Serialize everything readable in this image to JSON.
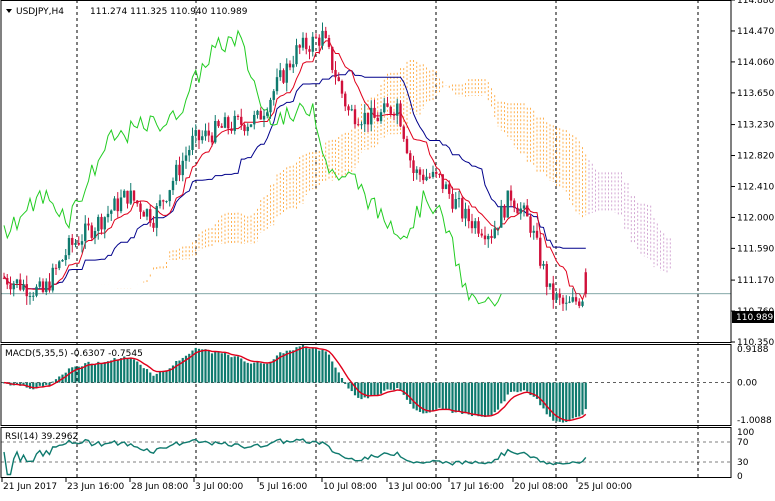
{
  "header": {
    "symbol": "USDJPY,H4",
    "ohlc": "111.274 111.325 110.940 110.989"
  },
  "price_axis": {
    "ticks": [
      "114.880",
      "114.470",
      "114.060",
      "113.650",
      "113.230",
      "112.820",
      "112.410",
      "112.000",
      "111.590",
      "111.170",
      "110.760",
      "110.350"
    ],
    "current_price": "110.989"
  },
  "time_axis": {
    "labels": [
      "21 Jun 2017",
      "23 Jun 16:00",
      "28 Jun 08:00",
      "3 Jul 00:00",
      "5 Jul 16:00",
      "10 Jul 08:00",
      "13 Jul 00:00",
      "17 Jul 16:00",
      "20 Jul 08:00",
      "25 Jul 00:00"
    ]
  },
  "macd": {
    "label": "MACD(5,35,5) -0.6307 -0.7545",
    "ticks": [
      "0.9188",
      "0.00",
      "-1.0088"
    ]
  },
  "rsi": {
    "label": "RSI(14) 39.2962",
    "ticks": [
      "100",
      "70",
      "30",
      "0"
    ]
  },
  "colors": {
    "bull_candle": "#0f7a6e",
    "bear_candle": "#d0103a",
    "tenkan": "#e0001b",
    "kijun": "#00008b",
    "chikou": "#22cc22",
    "kumo": "#ff8c00",
    "kumo_future": "#c080c0",
    "rsi_line": "#0f7a6e",
    "grid": "#000000"
  },
  "chart_data": [
    {
      "type": "candlestick",
      "title": "USDJPY,H4",
      "indicators": [
        "Ichimoku Kinko Hyo (Tenkan-sen, Kijun-sen, Chikou Span, Kumo)"
      ],
      "ylim": [
        110.35,
        114.88
      ],
      "x": [
        "21 Jun 2017",
        "23 Jun 16:00",
        "28 Jun 08:00",
        "3 Jul 00:00",
        "5 Jul 16:00",
        "10 Jul 08:00",
        "13 Jul 00:00",
        "17 Jul 16:00",
        "20 Jul 08:00",
        "25 Jul 00:00"
      ],
      "close_trajectory": [
        111.2,
        111.35,
        111.95,
        112.2,
        113.0,
        114.2,
        113.6,
        112.5,
        111.9,
        110.99
      ],
      "last_bar": {
        "open": 111.274,
        "high": 111.325,
        "low": 110.94,
        "close": 110.989
      }
    },
    {
      "type": "bar",
      "title": "MACD(5,35,5)",
      "series": [
        {
          "name": "MACD",
          "last": -0.6307
        },
        {
          "name": "Signal",
          "last": -0.7545
        }
      ],
      "ylim": [
        -1.0088,
        0.9188
      ]
    },
    {
      "type": "line",
      "title": "RSI(14)",
      "series": [
        {
          "name": "RSI(14)",
          "last": 39.2962
        }
      ],
      "levels": [
        70,
        30
      ],
      "ylim": [
        0,
        100
      ]
    }
  ]
}
